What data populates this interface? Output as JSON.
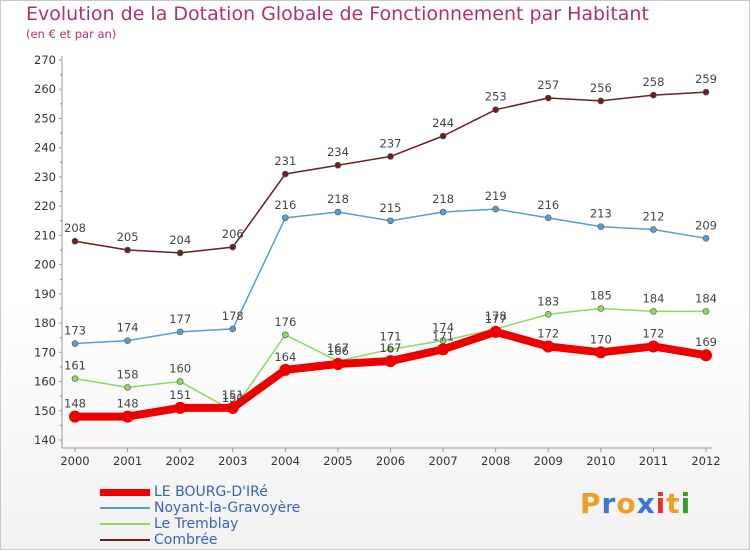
{
  "title": "Evolution de la Dotation Globale de Fonctionnement par Habitant",
  "subtitle": "(en € et par an)",
  "brand": {
    "letters": [
      "P",
      "r",
      "o",
      "x",
      "i",
      "t",
      "i"
    ],
    "colors": [
      "#f0a020",
      "#3a78c8",
      "#f0a020",
      "#3a78c8",
      "#e83030",
      "#f0a020",
      "#30a030"
    ]
  },
  "chart_data": {
    "type": "line",
    "x": [
      "2000",
      "2001",
      "2002",
      "2003",
      "2004",
      "2005",
      "2006",
      "2007",
      "2008",
      "2009",
      "2010",
      "2011",
      "2012"
    ],
    "ylim": [
      140,
      270
    ],
    "yticks": [
      140,
      150,
      160,
      170,
      180,
      190,
      200,
      210,
      220,
      230,
      240,
      250,
      260,
      270
    ],
    "grid": false,
    "legend_position": "bottom-left",
    "series": [
      {
        "name": "Combrée",
        "color": "#6b1f1f",
        "values": [
          208,
          205,
          204,
          206,
          231,
          234,
          237,
          244,
          253,
          257,
          256,
          258,
          259
        ]
      },
      {
        "name": "Noyant-la-Gravoyère",
        "color": "#5b9bd5",
        "values": [
          173,
          174,
          177,
          178,
          216,
          218,
          215,
          218,
          219,
          216,
          213,
          212,
          209
        ]
      },
      {
        "name": "Le Tremblay",
        "color": "#90d860",
        "values": [
          161,
          158,
          160,
          150,
          176,
          167,
          171,
          174,
          178,
          183,
          185,
          184,
          184
        ]
      },
      {
        "name": "LE BOURG-D'IRé",
        "color": "#ee0000",
        "values": [
          148,
          148,
          151,
          151,
          164,
          166,
          167,
          171,
          177,
          172,
          170,
          172,
          169
        ]
      }
    ],
    "legend_order": [
      "LE BOURG-D'IRé",
      "Noyant-la-Gravoyère",
      "Le Tremblay",
      "Combrée"
    ]
  }
}
